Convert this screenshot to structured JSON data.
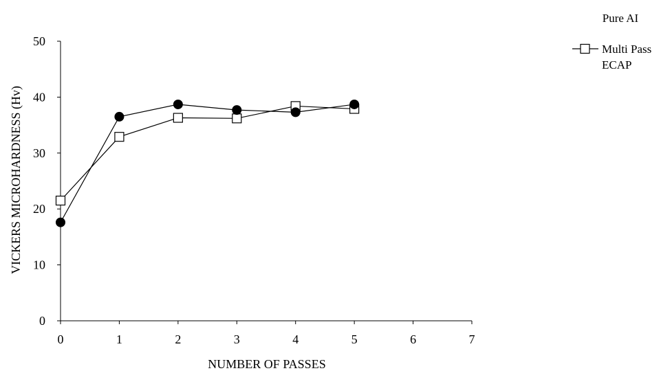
{
  "chart_data": {
    "type": "line",
    "title": "Pure AI",
    "xlabel": "NUMBER OF PASSES",
    "ylabel": "VICKERS MICROHARDNESS (Hv)",
    "xlim": [
      0,
      7
    ],
    "ylim": [
      0,
      50
    ],
    "x_ticks": [
      "0",
      "1",
      "2",
      "3",
      "4",
      "5",
      "6",
      "7"
    ],
    "y_ticks": [
      "0",
      "10",
      "20",
      "30",
      "40",
      "50"
    ],
    "grid": false,
    "legend_position": "top-right",
    "series": [
      {
        "name": "Multi Pass ECAP",
        "legend_lines": [
          "Multi Pass",
          "ECAP"
        ],
        "marker": "open-square",
        "color": "#000000",
        "x": [
          0,
          1,
          2,
          3,
          4,
          5
        ],
        "y": [
          21.5,
          32.9,
          36.3,
          36.2,
          38.4,
          37.9
        ]
      },
      {
        "marker": "filled-circle",
        "color": "#000000",
        "x": [
          0,
          1,
          2,
          3,
          4,
          5
        ],
        "y": [
          17.6,
          36.5,
          38.7,
          37.7,
          37.3,
          38.7
        ]
      }
    ]
  }
}
